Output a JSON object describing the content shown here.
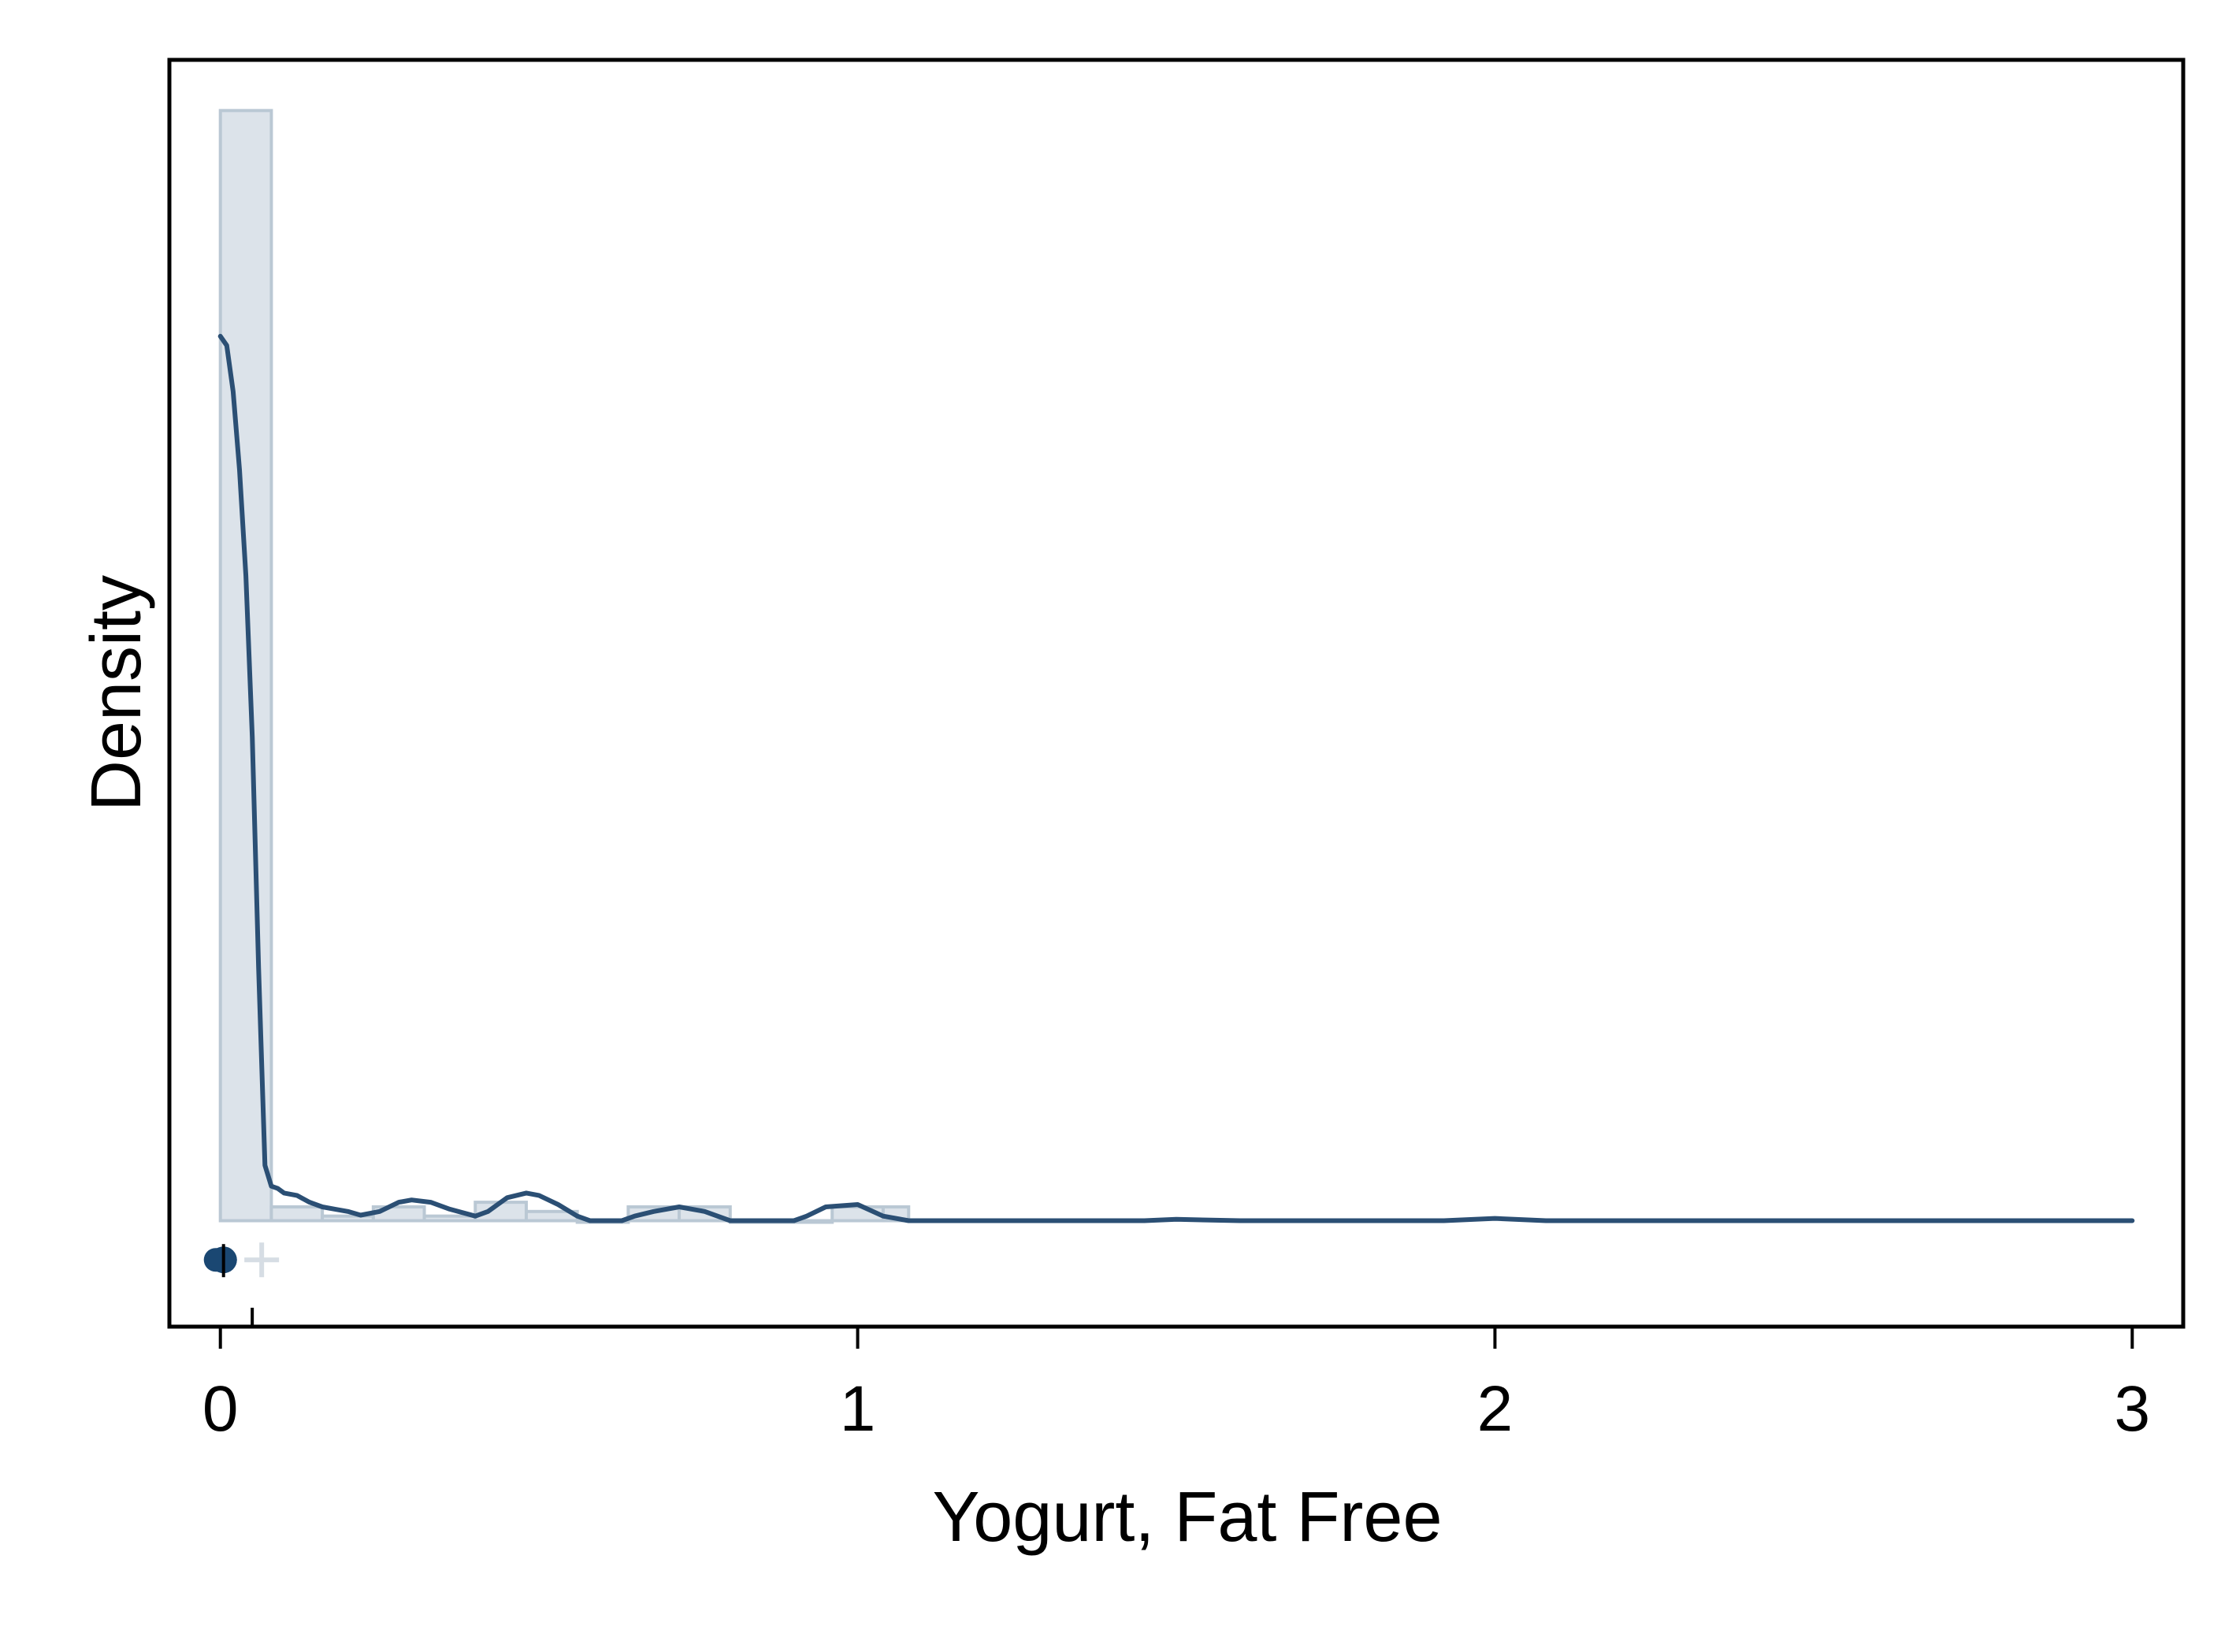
{
  "chart_data": {
    "type": "bar",
    "overlay": "kernel-density-line",
    "xlabel": "Yogurt, Fat Free",
    "ylabel": "Density",
    "xlim": [
      -0.08,
      3.08
    ],
    "ylim": [
      -0.23,
      2.52
    ],
    "x_ticks": [
      {
        "value": 0,
        "label": "0"
      },
      {
        "value": 1,
        "label": "1"
      },
      {
        "value": 2,
        "label": "2"
      },
      {
        "value": 3,
        "label": "3"
      }
    ],
    "y_ticks_shown": false,
    "grid": false,
    "histogram": {
      "bins": [
        {
          "x0": 0.0,
          "x1": 0.08,
          "density": 2.41
        },
        {
          "x0": 0.08,
          "x1": 0.16,
          "density": 0.03
        },
        {
          "x0": 0.16,
          "x1": 0.24,
          "density": 0.01
        },
        {
          "x0": 0.24,
          "x1": 0.32,
          "density": 0.03
        },
        {
          "x0": 0.32,
          "x1": 0.4,
          "density": 0.01
        },
        {
          "x0": 0.4,
          "x1": 0.48,
          "density": 0.04
        },
        {
          "x0": 0.48,
          "x1": 0.56,
          "density": 0.02
        },
        {
          "x0": 0.56,
          "x1": 0.64,
          "density": 0.0
        },
        {
          "x0": 0.64,
          "x1": 0.72,
          "density": 0.03
        },
        {
          "x0": 0.72,
          "x1": 0.8,
          "density": 0.03
        },
        {
          "x0": 0.8,
          "x1": 0.88,
          "density": 0.0
        },
        {
          "x0": 0.88,
          "x1": 0.96,
          "density": 0.0
        },
        {
          "x0": 0.96,
          "x1": 1.04,
          "density": 0.03
        },
        {
          "x0": 1.04,
          "x1": 1.08,
          "density": 0.03
        }
      ]
    },
    "density_curve": {
      "x": [
        0.0,
        0.01,
        0.02,
        0.03,
        0.04,
        0.05,
        0.06,
        0.07,
        0.08,
        0.09,
        0.1,
        0.12,
        0.14,
        0.16,
        0.18,
        0.2,
        0.22,
        0.25,
        0.28,
        0.3,
        0.33,
        0.36,
        0.4,
        0.42,
        0.45,
        0.48,
        0.5,
        0.53,
        0.56,
        0.58,
        0.6,
        0.63,
        0.65,
        0.68,
        0.72,
        0.76,
        0.8,
        0.85,
        0.9,
        0.92,
        0.95,
        1.0,
        1.04,
        1.08,
        1.15,
        1.3,
        1.45,
        1.5,
        1.6,
        1.8,
        1.92,
        2.0,
        2.08,
        2.3,
        2.6,
        2.8,
        2.92,
        3.0
      ],
      "y": [
        1.92,
        1.9,
        1.8,
        1.63,
        1.4,
        1.05,
        0.55,
        0.12,
        0.075,
        0.07,
        0.06,
        0.055,
        0.04,
        0.03,
        0.025,
        0.02,
        0.012,
        0.02,
        0.04,
        0.045,
        0.04,
        0.025,
        0.01,
        0.02,
        0.05,
        0.06,
        0.055,
        0.035,
        0.01,
        0.0,
        0.0,
        0.0,
        0.01,
        0.02,
        0.03,
        0.02,
        0.0,
        0.0,
        0.0,
        0.01,
        0.03,
        0.035,
        0.01,
        0.0,
        0.0,
        0.0,
        0.0,
        0.003,
        0.0,
        0.0,
        0.0,
        0.005,
        0.0,
        0.0,
        0.0,
        0.0,
        0.0,
        0.0
      ]
    },
    "box_marker": {
      "median": 0.0,
      "mean": 0.05,
      "quartile_low": 0.0,
      "quartile_high": 0.0
    },
    "colors": {
      "histogram_fill": "#dce3ea",
      "histogram_stroke": "#bac8d4",
      "density_line": "#2b4f74",
      "median_marker": "#1a4772",
      "mean_marker": "#d6dde4",
      "mean_tick": "#000000",
      "frame": "#000000"
    }
  }
}
